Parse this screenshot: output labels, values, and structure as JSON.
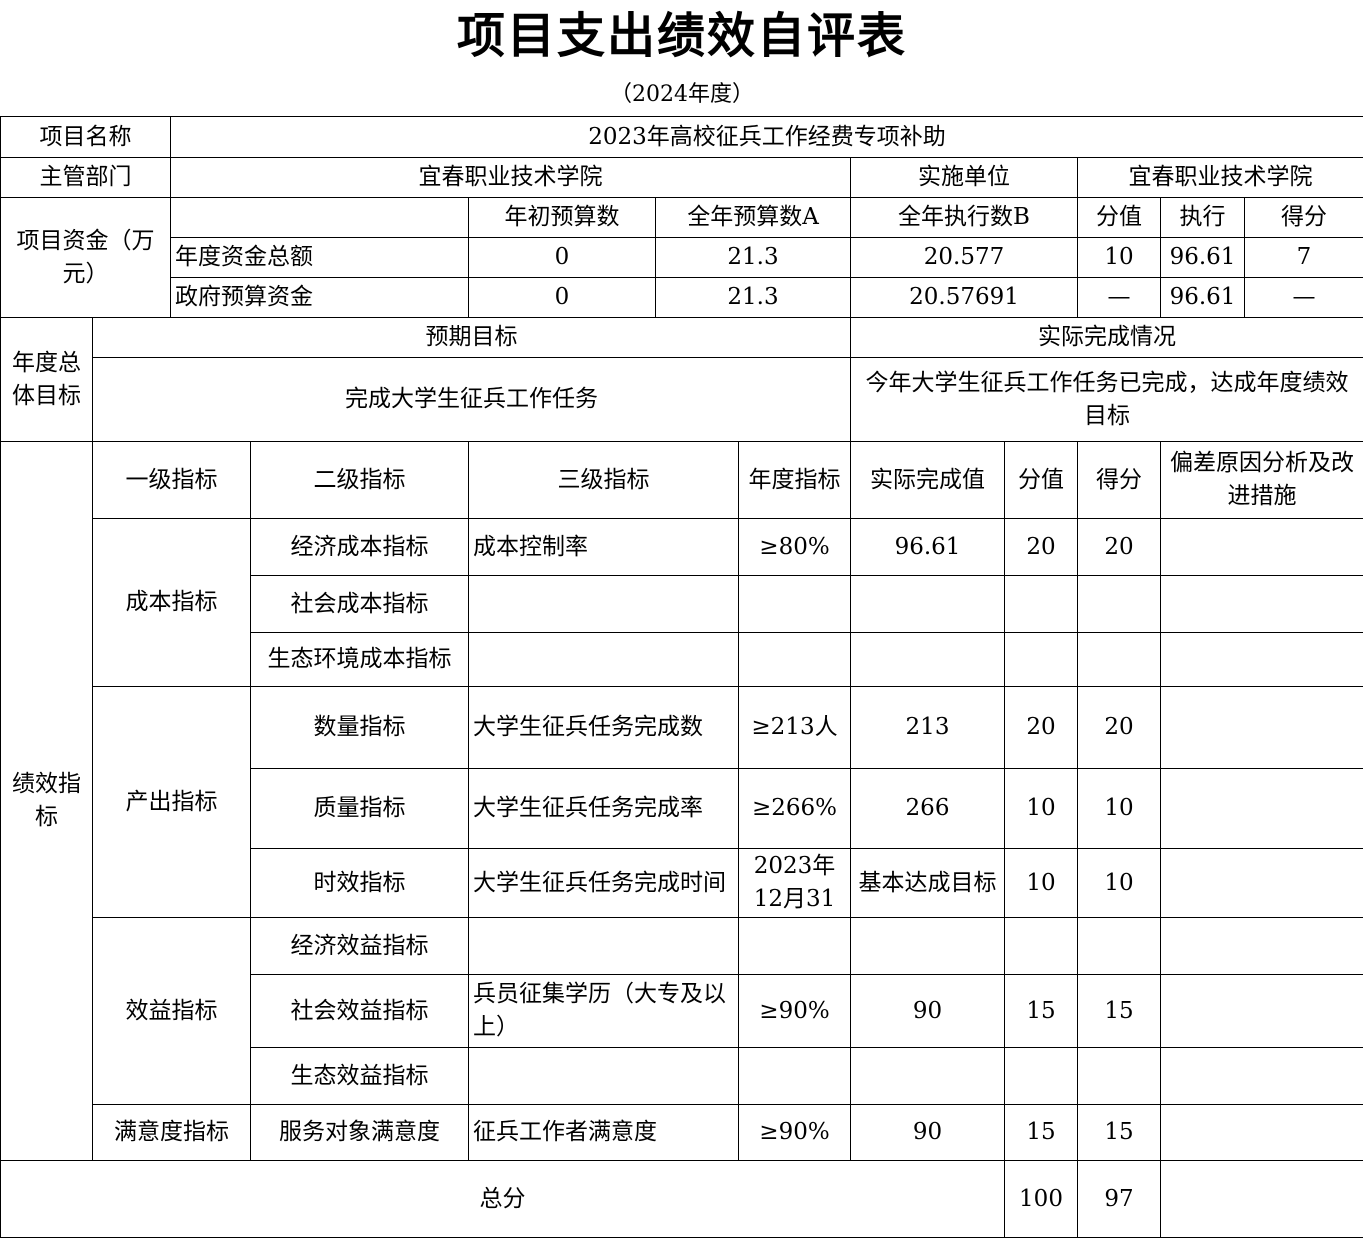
{
  "title": "项目支出绩效自评表",
  "subtitle": "（2024年度）",
  "project": {
    "name_label": "项目名称",
    "name": "2023年高校征兵工作经费专项补助",
    "dept_label": "主管部门",
    "dept": "宜春职业技术学院",
    "unit_label": "实施单位",
    "unit": "宜春职业技术学院"
  },
  "funds": {
    "label": "项目资金（万元）",
    "headers": [
      "年初预算数",
      "全年预算数A",
      "全年执行数B",
      "分值",
      "执行",
      "得分"
    ],
    "rows": [
      {
        "label": "年度资金总额",
        "values": [
          "0",
          "21.3",
          "20.577",
          "10",
          "96.61",
          "7"
        ]
      },
      {
        "label": "政府预算资金",
        "values": [
          "0",
          "21.3",
          "20.57691",
          "—",
          "96.61",
          "—"
        ]
      }
    ]
  },
  "goals": {
    "label": "年度总体目标",
    "expected_label": "预期目标",
    "actual_label": "实际完成情况",
    "expected": "完成大学生征兵工作任务",
    "actual": "今年大学生征兵工作任务已完成，达成年度绩效目标"
  },
  "indicators": {
    "label": "绩效指标",
    "headers": [
      "一级指标",
      "二级指标",
      "三级指标",
      "年度指标",
      "实际完成值",
      "分值",
      "得分",
      "偏差原因分析及改进措施"
    ],
    "groups": [
      {
        "level1": "成本指标",
        "rows": [
          {
            "level2": "经济成本指标",
            "level3": "成本控制率",
            "target": "≥80%",
            "actual": "96.61",
            "weight": "20",
            "score": "20",
            "note": ""
          },
          {
            "level2": "社会成本指标",
            "level3": "",
            "target": "",
            "actual": "",
            "weight": "",
            "score": "",
            "note": ""
          },
          {
            "level2": "生态环境成本指标",
            "level3": "",
            "target": "",
            "actual": "",
            "weight": "",
            "score": "",
            "note": ""
          }
        ]
      },
      {
        "level1": "产出指标",
        "rows": [
          {
            "level2": "数量指标",
            "level3": "大学生征兵任务完成数",
            "target": "≥213人",
            "actual": "213",
            "weight": "20",
            "score": "20",
            "note": ""
          },
          {
            "level2": "质量指标",
            "level3": "大学生征兵任务完成率",
            "target": "≥266%",
            "actual": "266",
            "weight": "10",
            "score": "10",
            "note": ""
          },
          {
            "level2": "时效指标",
            "level3": "大学生征兵任务完成时间",
            "target": "2023年12月31",
            "actual": "基本达成目标",
            "weight": "10",
            "score": "10",
            "note": ""
          }
        ]
      },
      {
        "level1": "效益指标",
        "rows": [
          {
            "level2": "经济效益指标",
            "level3": "",
            "target": "",
            "actual": "",
            "weight": "",
            "score": "",
            "note": ""
          },
          {
            "level2": "社会效益指标",
            "level3": "兵员征集学历（大专及以上）",
            "target": "≥90%",
            "actual": "90",
            "weight": "15",
            "score": "15",
            "note": ""
          },
          {
            "level2": "生态效益指标",
            "level3": "",
            "target": "",
            "actual": "",
            "weight": "",
            "score": "",
            "note": ""
          }
        ]
      },
      {
        "level1": "满意度指标",
        "rows": [
          {
            "level2": "服务对象满意度",
            "level3": "征兵工作者满意度",
            "target": "≥90%",
            "actual": "90",
            "weight": "15",
            "score": "15",
            "note": ""
          }
        ]
      }
    ]
  },
  "total": {
    "label": "总分",
    "weight": "100",
    "score": "97",
    "note": ""
  }
}
